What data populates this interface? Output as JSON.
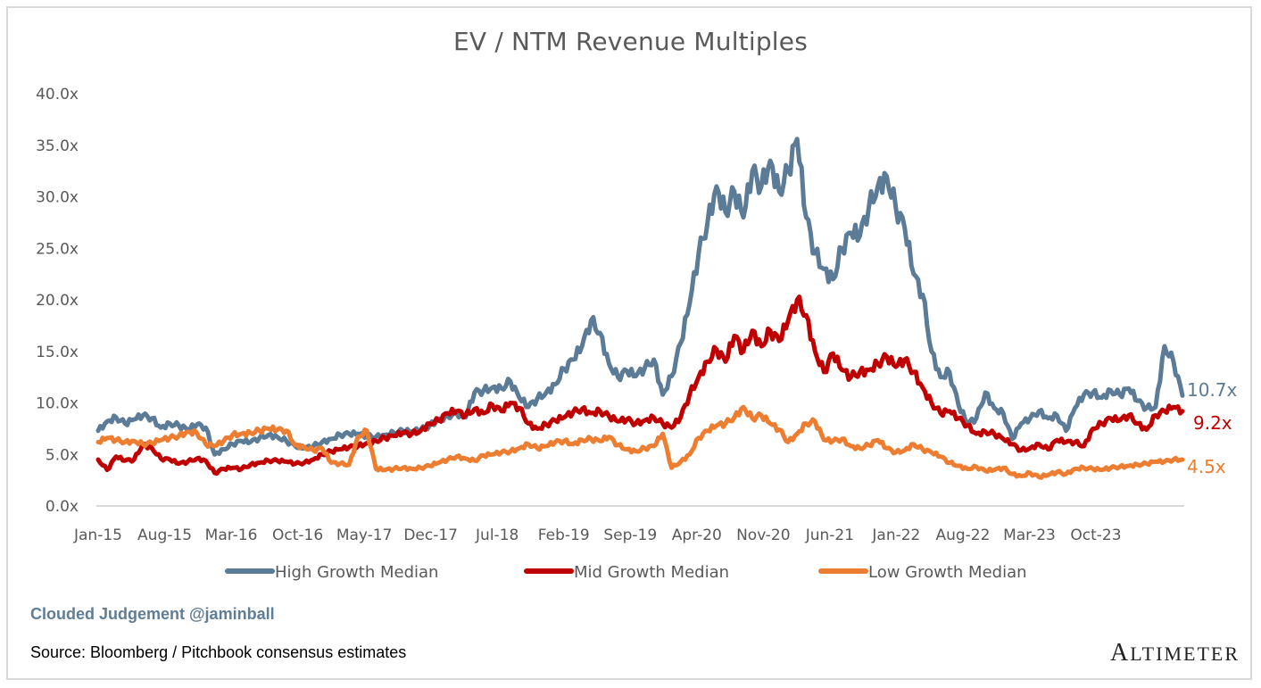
{
  "chart_data": {
    "type": "line",
    "title": "EV / NTM Revenue Multiples",
    "xlabel": "",
    "ylabel": "",
    "ylim": [
      0,
      40
    ],
    "yticks": [
      "0.0x",
      "5.0x",
      "10.0x",
      "15.0x",
      "20.0x",
      "25.0x",
      "30.0x",
      "35.0x",
      "40.0x"
    ],
    "ytick_values": [
      0,
      5,
      10,
      15,
      20,
      25,
      30,
      35,
      40
    ],
    "xticks": [
      "Jan-15",
      "Aug-15",
      "Mar-16",
      "Oct-16",
      "May-17",
      "Dec-17",
      "Jul-18",
      "Feb-19",
      "Sep-19",
      "Apr-20",
      "Nov-20",
      "Jun-21",
      "Jan-22",
      "Aug-22",
      "Mar-23",
      "Oct-23"
    ],
    "xtick_interval_months": 7,
    "x_start": "Jan-15",
    "x_step": "monthly",
    "grid": false,
    "legend_position": "bottom",
    "series": [
      {
        "name": "High Growth Median",
        "color": "#5b7b96",
        "end_label": "10.7x",
        "values": [
          7.3,
          8.2,
          8.6,
          8.0,
          8.4,
          8.8,
          8.5,
          7.6,
          8.0,
          7.8,
          7.4,
          7.9,
          7.6,
          5.0,
          5.5,
          6.0,
          6.3,
          6.2,
          6.6,
          6.9,
          6.7,
          6.3,
          5.8,
          5.6,
          5.8,
          6.2,
          6.5,
          6.9,
          7.0,
          7.0,
          6.8,
          6.7,
          6.9,
          7.1,
          7.3,
          7.2,
          7.4,
          7.8,
          8.4,
          8.7,
          9.0,
          8.6,
          11.0,
          11.2,
          11.5,
          11.4,
          12.1,
          10.5,
          9.6,
          10.4,
          11.0,
          11.8,
          13.3,
          14.2,
          15.5,
          18.0,
          16.8,
          13.8,
          12.5,
          13.1,
          12.6,
          13.4,
          14.2,
          10.8,
          12.6,
          15.8,
          19.6,
          24.5,
          27.5,
          31.0,
          28.5,
          30.5,
          28.0,
          32.5,
          31.0,
          33.5,
          30.5,
          32.5,
          35.6,
          28.0,
          24.5,
          23.0,
          22.0,
          25.0,
          26.5,
          26.2,
          29.0,
          31.0,
          32.0,
          29.0,
          27.0,
          22.5,
          20.5,
          15.0,
          12.5,
          13.0,
          9.8,
          8.0,
          8.5,
          11.0,
          9.5,
          9.0,
          6.5,
          8.0,
          8.5,
          9.2,
          8.5,
          8.8,
          7.3,
          9.5,
          10.8,
          11.0,
          10.5,
          11.2,
          10.8,
          11.4,
          10.2,
          9.5,
          9.6,
          15.5,
          14.0,
          10.7
        ]
      },
      {
        "name": "Mid Growth Median",
        "color": "#c00000",
        "end_label": "9.2x",
        "values": [
          4.5,
          3.5,
          4.8,
          4.4,
          4.5,
          6.0,
          5.6,
          4.6,
          4.5,
          4.1,
          4.3,
          4.6,
          4.4,
          3.2,
          3.6,
          3.7,
          3.6,
          4.0,
          4.2,
          4.4,
          4.4,
          4.3,
          4.1,
          4.2,
          4.5,
          5.0,
          5.3,
          5.5,
          5.7,
          5.8,
          6.1,
          6.3,
          6.6,
          6.8,
          7.1,
          7.0,
          7.3,
          8.0,
          8.3,
          9.0,
          9.2,
          8.8,
          9.4,
          9.0,
          9.8,
          9.2,
          10.0,
          9.5,
          8.0,
          7.5,
          7.9,
          8.3,
          8.6,
          9.1,
          9.4,
          9.0,
          9.2,
          8.7,
          8.2,
          8.4,
          8.0,
          8.3,
          8.6,
          8.0,
          7.6,
          8.6,
          10.8,
          12.5,
          14.0,
          15.2,
          14.0,
          16.5,
          15.0,
          17.0,
          15.5,
          17.0,
          16.0,
          18.0,
          20.0,
          18.5,
          15.0,
          13.0,
          14.8,
          13.2,
          12.5,
          13.0,
          13.2,
          13.8,
          14.5,
          13.5,
          14.2,
          13.0,
          11.5,
          10.0,
          9.0,
          9.2,
          8.5,
          7.8,
          7.0,
          7.2,
          7.0,
          6.5,
          6.0,
          5.4,
          5.6,
          6.0,
          5.5,
          6.4,
          6.2,
          6.2,
          5.8,
          7.5,
          8.0,
          8.5,
          8.3,
          8.8,
          8.0,
          7.4,
          8.8,
          9.2,
          9.6,
          9.2
        ]
      },
      {
        "name": "Low Growth Median",
        "color": "#ed7d31",
        "end_label": "4.5x",
        "values": [
          6.2,
          6.6,
          6.4,
          6.2,
          6.3,
          6.0,
          6.1,
          6.4,
          6.6,
          6.8,
          7.2,
          7.1,
          6.0,
          5.8,
          6.3,
          6.9,
          7.0,
          7.1,
          7.3,
          7.5,
          7.4,
          7.3,
          5.9,
          5.7,
          5.4,
          5.6,
          4.2,
          4.1,
          4.0,
          6.7,
          7.3,
          3.6,
          3.5,
          3.6,
          3.7,
          3.6,
          3.7,
          3.9,
          4.2,
          4.5,
          4.8,
          4.6,
          4.4,
          4.9,
          5.0,
          5.2,
          5.3,
          5.6,
          6.0,
          5.6,
          5.8,
          6.2,
          6.3,
          6.0,
          6.4,
          6.5,
          6.3,
          6.7,
          5.9,
          5.5,
          5.3,
          5.6,
          5.8,
          7.0,
          3.7,
          4.3,
          5.0,
          6.6,
          7.3,
          7.8,
          8.0,
          8.6,
          9.6,
          8.5,
          8.8,
          8.0,
          7.4,
          6.2,
          7.0,
          8.0,
          8.2,
          6.4,
          6.3,
          6.5,
          5.8,
          5.6,
          5.9,
          6.4,
          5.6,
          5.2,
          5.4,
          6.0,
          5.5,
          5.2,
          4.8,
          4.2,
          3.9,
          3.6,
          3.8,
          3.4,
          3.5,
          3.7,
          3.1,
          2.9,
          3.2,
          2.8,
          3.0,
          3.3,
          3.1,
          3.6,
          3.7,
          3.6,
          3.5,
          3.7,
          3.8,
          3.9,
          4.0,
          4.1,
          4.3,
          4.3,
          4.5,
          4.5
        ]
      }
    ]
  },
  "footer": {
    "credit": "Clouded Judgement @jaminball",
    "source": "Source: Bloomberg / Pitchbook consensus estimates",
    "brand": "ALTIMETER",
    "brand_first": "A",
    "brand_rest": "LTIMETER"
  }
}
